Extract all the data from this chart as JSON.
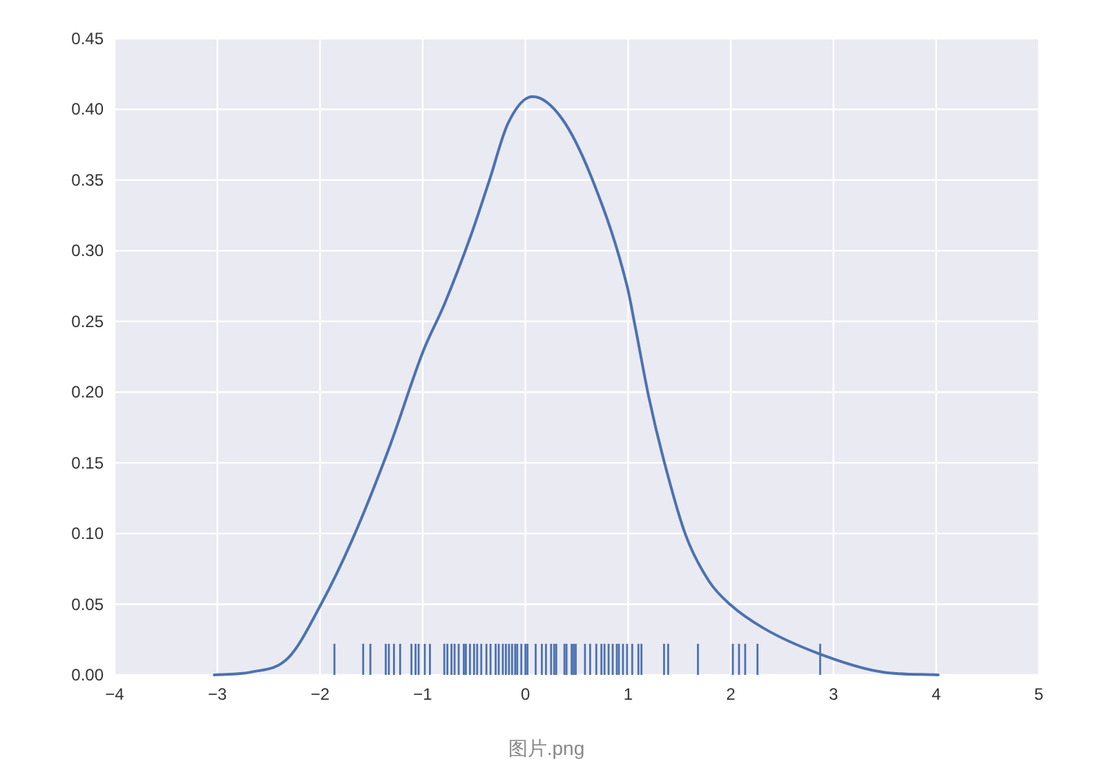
{
  "chart_data": {
    "type": "line",
    "xlim": [
      -4,
      5
    ],
    "xticks": [
      -4,
      -3,
      -2,
      -1,
      0,
      1,
      2,
      3,
      4,
      5
    ],
    "ylim": [
      0,
      0.45
    ],
    "yticks": [
      {
        "value": 0,
        "label": "0.00"
      },
      {
        "value": 0.05,
        "label": "0.05"
      },
      {
        "value": 0.1,
        "label": "0.10"
      },
      {
        "value": 0.15,
        "label": "0.15"
      },
      {
        "value": 0.2,
        "label": "0.20"
      },
      {
        "value": 0.25,
        "label": "0.25"
      },
      {
        "value": 0.3,
        "label": "0.30"
      },
      {
        "value": 0.35,
        "label": "0.35"
      },
      {
        "value": 0.4,
        "label": "0.40"
      },
      {
        "value": 0.45,
        "label": "0.45"
      }
    ],
    "grid": true,
    "marker": "none",
    "line_style": "solid",
    "series": [
      {
        "color": "#4c72b0",
        "x": [
          -3.03,
          -2.67,
          -2.31,
          -1.99,
          -1.69,
          -1.33,
          -0.99,
          -0.79,
          -0.53,
          -0.35,
          -0.17,
          0.07,
          0.36,
          0.67,
          0.99,
          1.07,
          1.2,
          1.34,
          1.56,
          1.79,
          1.99,
          2.32,
          2.86,
          3.48,
          4.02
        ],
        "values": [
          0,
          0.002,
          0.012,
          0.05,
          0.095,
          0.16,
          0.23,
          0.262,
          0.311,
          0.35,
          0.39,
          0.409,
          0.393,
          0.347,
          0.275,
          0.246,
          0.197,
          0.154,
          0.099,
          0.066,
          0.05,
          0.033,
          0.015,
          0.002,
          0
        ]
      },
      {
        "type": "bar",
        "color": "#4c72b0",
        "x": [
          -1.86,
          -1.58,
          -1.51,
          -1.36,
          -1.33,
          -1.28,
          -1.22,
          -1.11,
          -1.07,
          -1.04,
          -0.98,
          -0.93,
          -0.79,
          -0.76,
          -0.72,
          -0.69,
          -0.65,
          -0.6,
          -0.58,
          -0.54,
          -0.5,
          -0.47,
          -0.43,
          -0.38,
          -0.34,
          -0.29,
          -0.26,
          -0.22,
          -0.19,
          -0.16,
          -0.13,
          -0.1,
          -0.08,
          -0.04,
          0,
          0.02,
          0.1,
          0.16,
          0.2,
          0.25,
          0.28,
          0.3,
          0.38,
          0.4,
          0.45,
          0.47,
          0.49,
          0.58,
          0.63,
          0.69,
          0.74,
          0.77,
          0.81,
          0.85,
          0.89,
          0.91,
          0.95,
          0.99,
          1.04,
          1.1,
          1.13,
          1.35,
          1.39,
          1.68,
          2.02,
          2.08,
          2.14,
          2.26,
          2.87
        ],
        "values": [
          0.022,
          0.022,
          0.022,
          0.022,
          0.022,
          0.022,
          0.022,
          0.022,
          0.022,
          0.022,
          0.022,
          0.022,
          0.022,
          0.022,
          0.022,
          0.022,
          0.022,
          0.022,
          0.022,
          0.022,
          0.022,
          0.022,
          0.022,
          0.022,
          0.022,
          0.022,
          0.022,
          0.022,
          0.022,
          0.022,
          0.022,
          0.022,
          0.022,
          0.022,
          0.022,
          0.022,
          0.022,
          0.022,
          0.022,
          0.022,
          0.022,
          0.022,
          0.022,
          0.022,
          0.022,
          0.022,
          0.022,
          0.022,
          0.022,
          0.022,
          0.022,
          0.022,
          0.022,
          0.022,
          0.022,
          0.022,
          0.022,
          0.022,
          0.022,
          0.022,
          0.022,
          0.022,
          0.022,
          0.022,
          0.022,
          0.022,
          0.022,
          0.022,
          0.022
        ]
      }
    ],
    "annotations": [
      "图片.png"
    ]
  }
}
